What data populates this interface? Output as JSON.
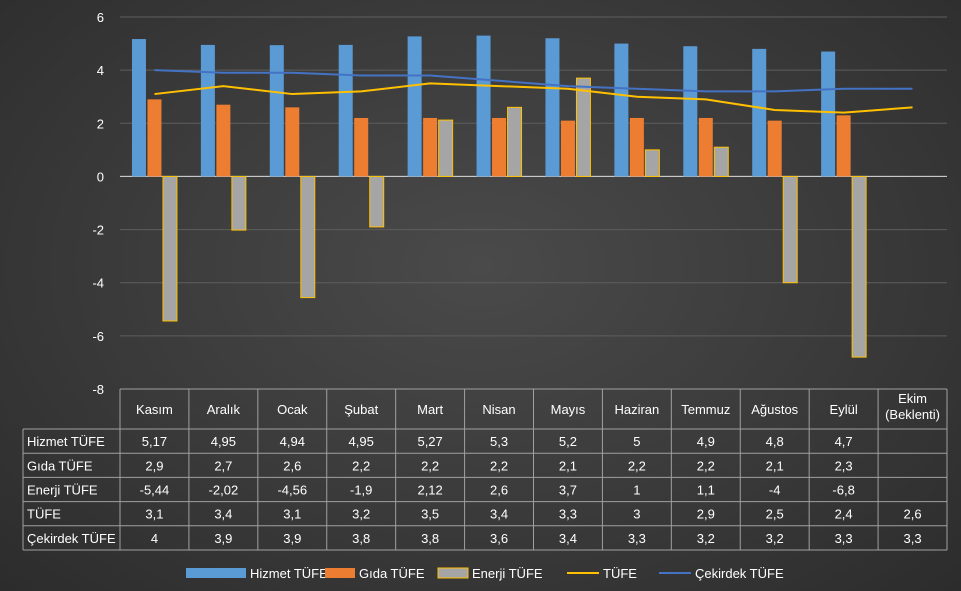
{
  "chart_data": {
    "type": "bar",
    "categories": [
      "Kasım",
      "Aralık",
      "Ocak",
      "Şubat",
      "Mart",
      "Nisan",
      "Mayıs",
      "Haziran",
      "Temmuz",
      "Ağustos",
      "Eylül",
      "Ekim (Beklenti)"
    ],
    "category_lines": [
      [
        "Kasım"
      ],
      [
        "Aralık"
      ],
      [
        "Ocak"
      ],
      [
        "Şubat"
      ],
      [
        "Mart"
      ],
      [
        "Nisan"
      ],
      [
        "Mayıs"
      ],
      [
        "Haziran"
      ],
      [
        "Temmuz"
      ],
      [
        "Ağustos"
      ],
      [
        "Eylül"
      ],
      [
        "Ekim",
        "(Beklenti)"
      ]
    ],
    "series": [
      {
        "name": "Hizmet TÜFE",
        "kind": "bar",
        "color": "#5b9bd5",
        "values": [
          5.17,
          4.95,
          4.94,
          4.95,
          5.27,
          5.3,
          5.2,
          5,
          4.9,
          4.8,
          4.7,
          null
        ],
        "labels": [
          "5,17",
          "4,95",
          "4,94",
          "4,95",
          "5,27",
          "5,3",
          "5,2",
          "5",
          "4,9",
          "4,8",
          "4,7",
          ""
        ]
      },
      {
        "name": "Gıda TÜFE",
        "kind": "bar",
        "color": "#ed7d31",
        "values": [
          2.9,
          2.7,
          2.6,
          2.2,
          2.2,
          2.2,
          2.1,
          2.2,
          2.2,
          2.1,
          2.3,
          null
        ],
        "labels": [
          "2,9",
          "2,7",
          "2,6",
          "2,2",
          "2,2",
          "2,2",
          "2,1",
          "2,2",
          "2,2",
          "2,1",
          "2,3",
          ""
        ]
      },
      {
        "name": "Enerji TÜFE",
        "kind": "bar",
        "color": "#a5a5a5",
        "border": "#ffc000",
        "values": [
          -5.44,
          -2.02,
          -4.56,
          -1.9,
          2.12,
          2.6,
          3.7,
          1,
          1.1,
          -4,
          -6.8,
          null
        ],
        "labels": [
          "-5,44",
          "-2,02",
          "-4,56",
          "-1,9",
          "2,12",
          "2,6",
          "3,7",
          "1",
          "1,1",
          "-4",
          "-6,8",
          ""
        ]
      },
      {
        "name": "TÜFE",
        "kind": "line",
        "color": "#ffc000",
        "values": [
          3.1,
          3.4,
          3.1,
          3.2,
          3.5,
          3.4,
          3.3,
          3,
          2.9,
          2.5,
          2.4,
          2.6
        ],
        "labels": [
          "3,1",
          "3,4",
          "3,1",
          "3,2",
          "3,5",
          "3,4",
          "3,3",
          "3",
          "2,9",
          "2,5",
          "2,4",
          "2,6"
        ]
      },
      {
        "name": "Çekirdek TÜFE",
        "kind": "line",
        "color": "#4472c4",
        "values": [
          4,
          3.9,
          3.9,
          3.8,
          3.8,
          3.6,
          3.4,
          3.3,
          3.2,
          3.2,
          3.3,
          3.3
        ],
        "labels": [
          "4",
          "3,9",
          "3,9",
          "3,8",
          "3,8",
          "3,6",
          "3,4",
          "3,3",
          "3,2",
          "3,2",
          "3,3",
          "3,3"
        ]
      }
    ],
    "ylim": [
      -8,
      6
    ],
    "yticks": [
      6,
      4,
      2,
      0,
      -2,
      -4,
      -6,
      -8
    ],
    "grid": true,
    "legend": "bottom",
    "data_table": true
  }
}
